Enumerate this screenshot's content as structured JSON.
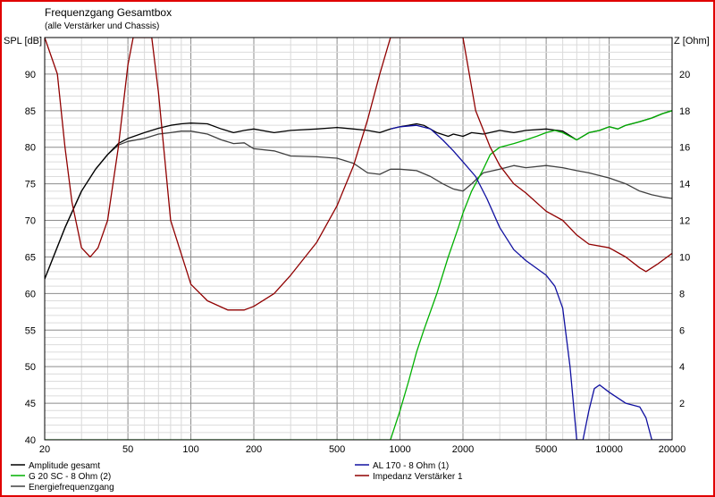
{
  "chart_data": {
    "type": "line",
    "title": "Frequenzgang Gesamtbox",
    "subtitle": "(alle Verstärker und Chassis)",
    "ylabel_left": "SPL [dB]",
    "ylabel_right": "Z [Ohm]",
    "x_scale": "log",
    "xlim": [
      20,
      20000
    ],
    "ylim_left": [
      40,
      95
    ],
    "ylim_right": [
      0,
      22
    ],
    "x_ticks": [
      20,
      50,
      100,
      200,
      500,
      1000,
      2000,
      5000,
      10000,
      20000
    ],
    "x_tick_labels": [
      "20",
      "50",
      "100",
      "200",
      "500",
      "1000",
      "2000",
      "5000",
      "10000",
      "20000"
    ],
    "y_ticks_left": [
      40,
      45,
      50,
      55,
      60,
      65,
      70,
      75,
      80,
      85,
      90
    ],
    "y_ticks_right": [
      2,
      4,
      6,
      8,
      10,
      12,
      14,
      16,
      18,
      20
    ],
    "grid": true,
    "legend_position": "bottom",
    "legend": [
      {
        "label": "Amplitude gesamt",
        "color": "#000000"
      },
      {
        "label": "AL 170 - 8 Ohm (1)",
        "color": "#1010a0"
      },
      {
        "label": "G 20 SC - 8 Ohm (2)",
        "color": "#00b000"
      },
      {
        "label": "Impedanz Verstärker 1",
        "color": "#900000"
      },
      {
        "label": "Energiefrequenzgang",
        "color": "#404040"
      }
    ],
    "series": [
      {
        "name": "Amplitude gesamt",
        "axis": "left",
        "color": "#000000",
        "points": [
          [
            20,
            62
          ],
          [
            25,
            69
          ],
          [
            30,
            74
          ],
          [
            35,
            77
          ],
          [
            40,
            79
          ],
          [
            45,
            80.5
          ],
          [
            50,
            81.2
          ],
          [
            60,
            82
          ],
          [
            70,
            82.6
          ],
          [
            80,
            83
          ],
          [
            90,
            83.2
          ],
          [
            100,
            83.3
          ],
          [
            120,
            83.2
          ],
          [
            140,
            82.5
          ],
          [
            160,
            82
          ],
          [
            180,
            82.3
          ],
          [
            200,
            82.5
          ],
          [
            250,
            82
          ],
          [
            300,
            82.3
          ],
          [
            400,
            82.5
          ],
          [
            500,
            82.7
          ],
          [
            600,
            82.5
          ],
          [
            700,
            82.3
          ],
          [
            800,
            82
          ],
          [
            900,
            82.5
          ],
          [
            1000,
            82.8
          ],
          [
            1100,
            83
          ],
          [
            1200,
            83.2
          ],
          [
            1300,
            83
          ],
          [
            1500,
            82
          ],
          [
            1700,
            81.5
          ],
          [
            1800,
            81.8
          ],
          [
            2000,
            81.5
          ],
          [
            2200,
            82
          ],
          [
            2500,
            81.8
          ],
          [
            3000,
            82.3
          ],
          [
            3500,
            82
          ],
          [
            4000,
            82.3
          ],
          [
            5000,
            82.5
          ],
          [
            6000,
            82.2
          ],
          [
            7000,
            81
          ],
          [
            8000,
            82
          ],
          [
            9000,
            82.3
          ],
          [
            10000,
            82.8
          ],
          [
            11000,
            82.5
          ],
          [
            12000,
            83
          ],
          [
            14000,
            83.5
          ],
          [
            16000,
            84
          ],
          [
            18000,
            84.6
          ],
          [
            20000,
            85
          ]
        ]
      },
      {
        "name": "Energiefrequenzgang",
        "axis": "left",
        "color": "#404040",
        "points": [
          [
            20,
            62
          ],
          [
            25,
            69
          ],
          [
            30,
            74
          ],
          [
            35,
            77
          ],
          [
            40,
            79
          ],
          [
            45,
            80.3
          ],
          [
            50,
            80.8
          ],
          [
            60,
            81.2
          ],
          [
            70,
            81.8
          ],
          [
            80,
            82
          ],
          [
            90,
            82.2
          ],
          [
            100,
            82.2
          ],
          [
            120,
            81.8
          ],
          [
            140,
            81
          ],
          [
            160,
            80.5
          ],
          [
            180,
            80.6
          ],
          [
            200,
            79.8
          ],
          [
            250,
            79.5
          ],
          [
            300,
            78.8
          ],
          [
            400,
            78.7
          ],
          [
            500,
            78.5
          ],
          [
            600,
            77.8
          ],
          [
            700,
            76.5
          ],
          [
            800,
            76.3
          ],
          [
            900,
            77
          ],
          [
            1000,
            77
          ],
          [
            1200,
            76.8
          ],
          [
            1400,
            76
          ],
          [
            1600,
            75
          ],
          [
            1800,
            74.3
          ],
          [
            2000,
            74
          ],
          [
            2200,
            75
          ],
          [
            2500,
            76.5
          ],
          [
            3000,
            77
          ],
          [
            3500,
            77.5
          ],
          [
            4000,
            77.2
          ],
          [
            5000,
            77.5
          ],
          [
            6000,
            77.2
          ],
          [
            7000,
            76.8
          ],
          [
            8000,
            76.5
          ],
          [
            10000,
            75.8
          ],
          [
            12000,
            75
          ],
          [
            14000,
            74
          ],
          [
            16000,
            73.5
          ],
          [
            18000,
            73.2
          ],
          [
            20000,
            73
          ]
        ]
      },
      {
        "name": "AL 170 - 8 Ohm (1)",
        "axis": "left",
        "color": "#1010a0",
        "points": [
          [
            900,
            82.5
          ],
          [
            1000,
            82.8
          ],
          [
            1200,
            83
          ],
          [
            1400,
            82.5
          ],
          [
            1600,
            81
          ],
          [
            1800,
            79.5
          ],
          [
            2000,
            78
          ],
          [
            2300,
            76
          ],
          [
            2600,
            73
          ],
          [
            3000,
            69
          ],
          [
            3500,
            66
          ],
          [
            4000,
            64.5
          ],
          [
            5000,
            62.5
          ],
          [
            5500,
            61
          ],
          [
            6000,
            58
          ],
          [
            6500,
            50
          ],
          [
            7000,
            40
          ],
          [
            7500,
            40
          ],
          [
            8000,
            44
          ],
          [
            8500,
            47
          ],
          [
            9000,
            47.5
          ],
          [
            10000,
            46.5
          ],
          [
            12000,
            45
          ],
          [
            14000,
            44.5
          ],
          [
            15000,
            43
          ],
          [
            16000,
            40
          ],
          [
            20000,
            40
          ]
        ]
      },
      {
        "name": "G 20 SC - 8 Ohm (2)",
        "axis": "left",
        "color": "#00b000",
        "points": [
          [
            20,
            40
          ],
          [
            900,
            40
          ],
          [
            1000,
            44
          ],
          [
            1100,
            48
          ],
          [
            1200,
            52
          ],
          [
            1300,
            55
          ],
          [
            1500,
            60
          ],
          [
            1700,
            65
          ],
          [
            1900,
            69
          ],
          [
            2000,
            71
          ],
          [
            2200,
            74
          ],
          [
            2500,
            77
          ],
          [
            2700,
            79
          ],
          [
            3000,
            80
          ],
          [
            3500,
            80.5
          ],
          [
            4000,
            81
          ],
          [
            4500,
            81.5
          ],
          [
            5000,
            82
          ],
          [
            5500,
            82.3
          ],
          [
            6000,
            82
          ],
          [
            7000,
            81
          ],
          [
            8000,
            82
          ],
          [
            9000,
            82.3
          ],
          [
            10000,
            82.8
          ],
          [
            11000,
            82.5
          ],
          [
            12000,
            83
          ],
          [
            14000,
            83.5
          ],
          [
            16000,
            84
          ],
          [
            18000,
            84.6
          ],
          [
            20000,
            85
          ]
        ]
      },
      {
        "name": "Impedanz Verstärker 1",
        "axis": "right",
        "color": "#900000",
        "points": [
          [
            20,
            22
          ],
          [
            23,
            20
          ],
          [
            25,
            16
          ],
          [
            27,
            13
          ],
          [
            30,
            10.5
          ],
          [
            33,
            10
          ],
          [
            36,
            10.5
          ],
          [
            40,
            12
          ],
          [
            45,
            16
          ],
          [
            50,
            20.5
          ],
          [
            53,
            22
          ],
          [
            65,
            22
          ],
          [
            70,
            19
          ],
          [
            80,
            12
          ],
          [
            100,
            8.5
          ],
          [
            120,
            7.6
          ],
          [
            150,
            7.1
          ],
          [
            180,
            7.1
          ],
          [
            200,
            7.3
          ],
          [
            250,
            8
          ],
          [
            300,
            9
          ],
          [
            400,
            10.8
          ],
          [
            500,
            12.8
          ],
          [
            600,
            15
          ],
          [
            700,
            17.5
          ],
          [
            800,
            20
          ],
          [
            900,
            22
          ],
          [
            2000,
            22
          ],
          [
            2300,
            18
          ],
          [
            2700,
            16
          ],
          [
            3000,
            15
          ],
          [
            3500,
            14
          ],
          [
            4000,
            13.5
          ],
          [
            5000,
            12.5
          ],
          [
            6000,
            12
          ],
          [
            7000,
            11.2
          ],
          [
            8000,
            10.7
          ],
          [
            10000,
            10.5
          ],
          [
            12000,
            10
          ],
          [
            14000,
            9.4
          ],
          [
            15000,
            9.2
          ],
          [
            17000,
            9.6
          ],
          [
            20000,
            10.2
          ]
        ]
      }
    ]
  }
}
